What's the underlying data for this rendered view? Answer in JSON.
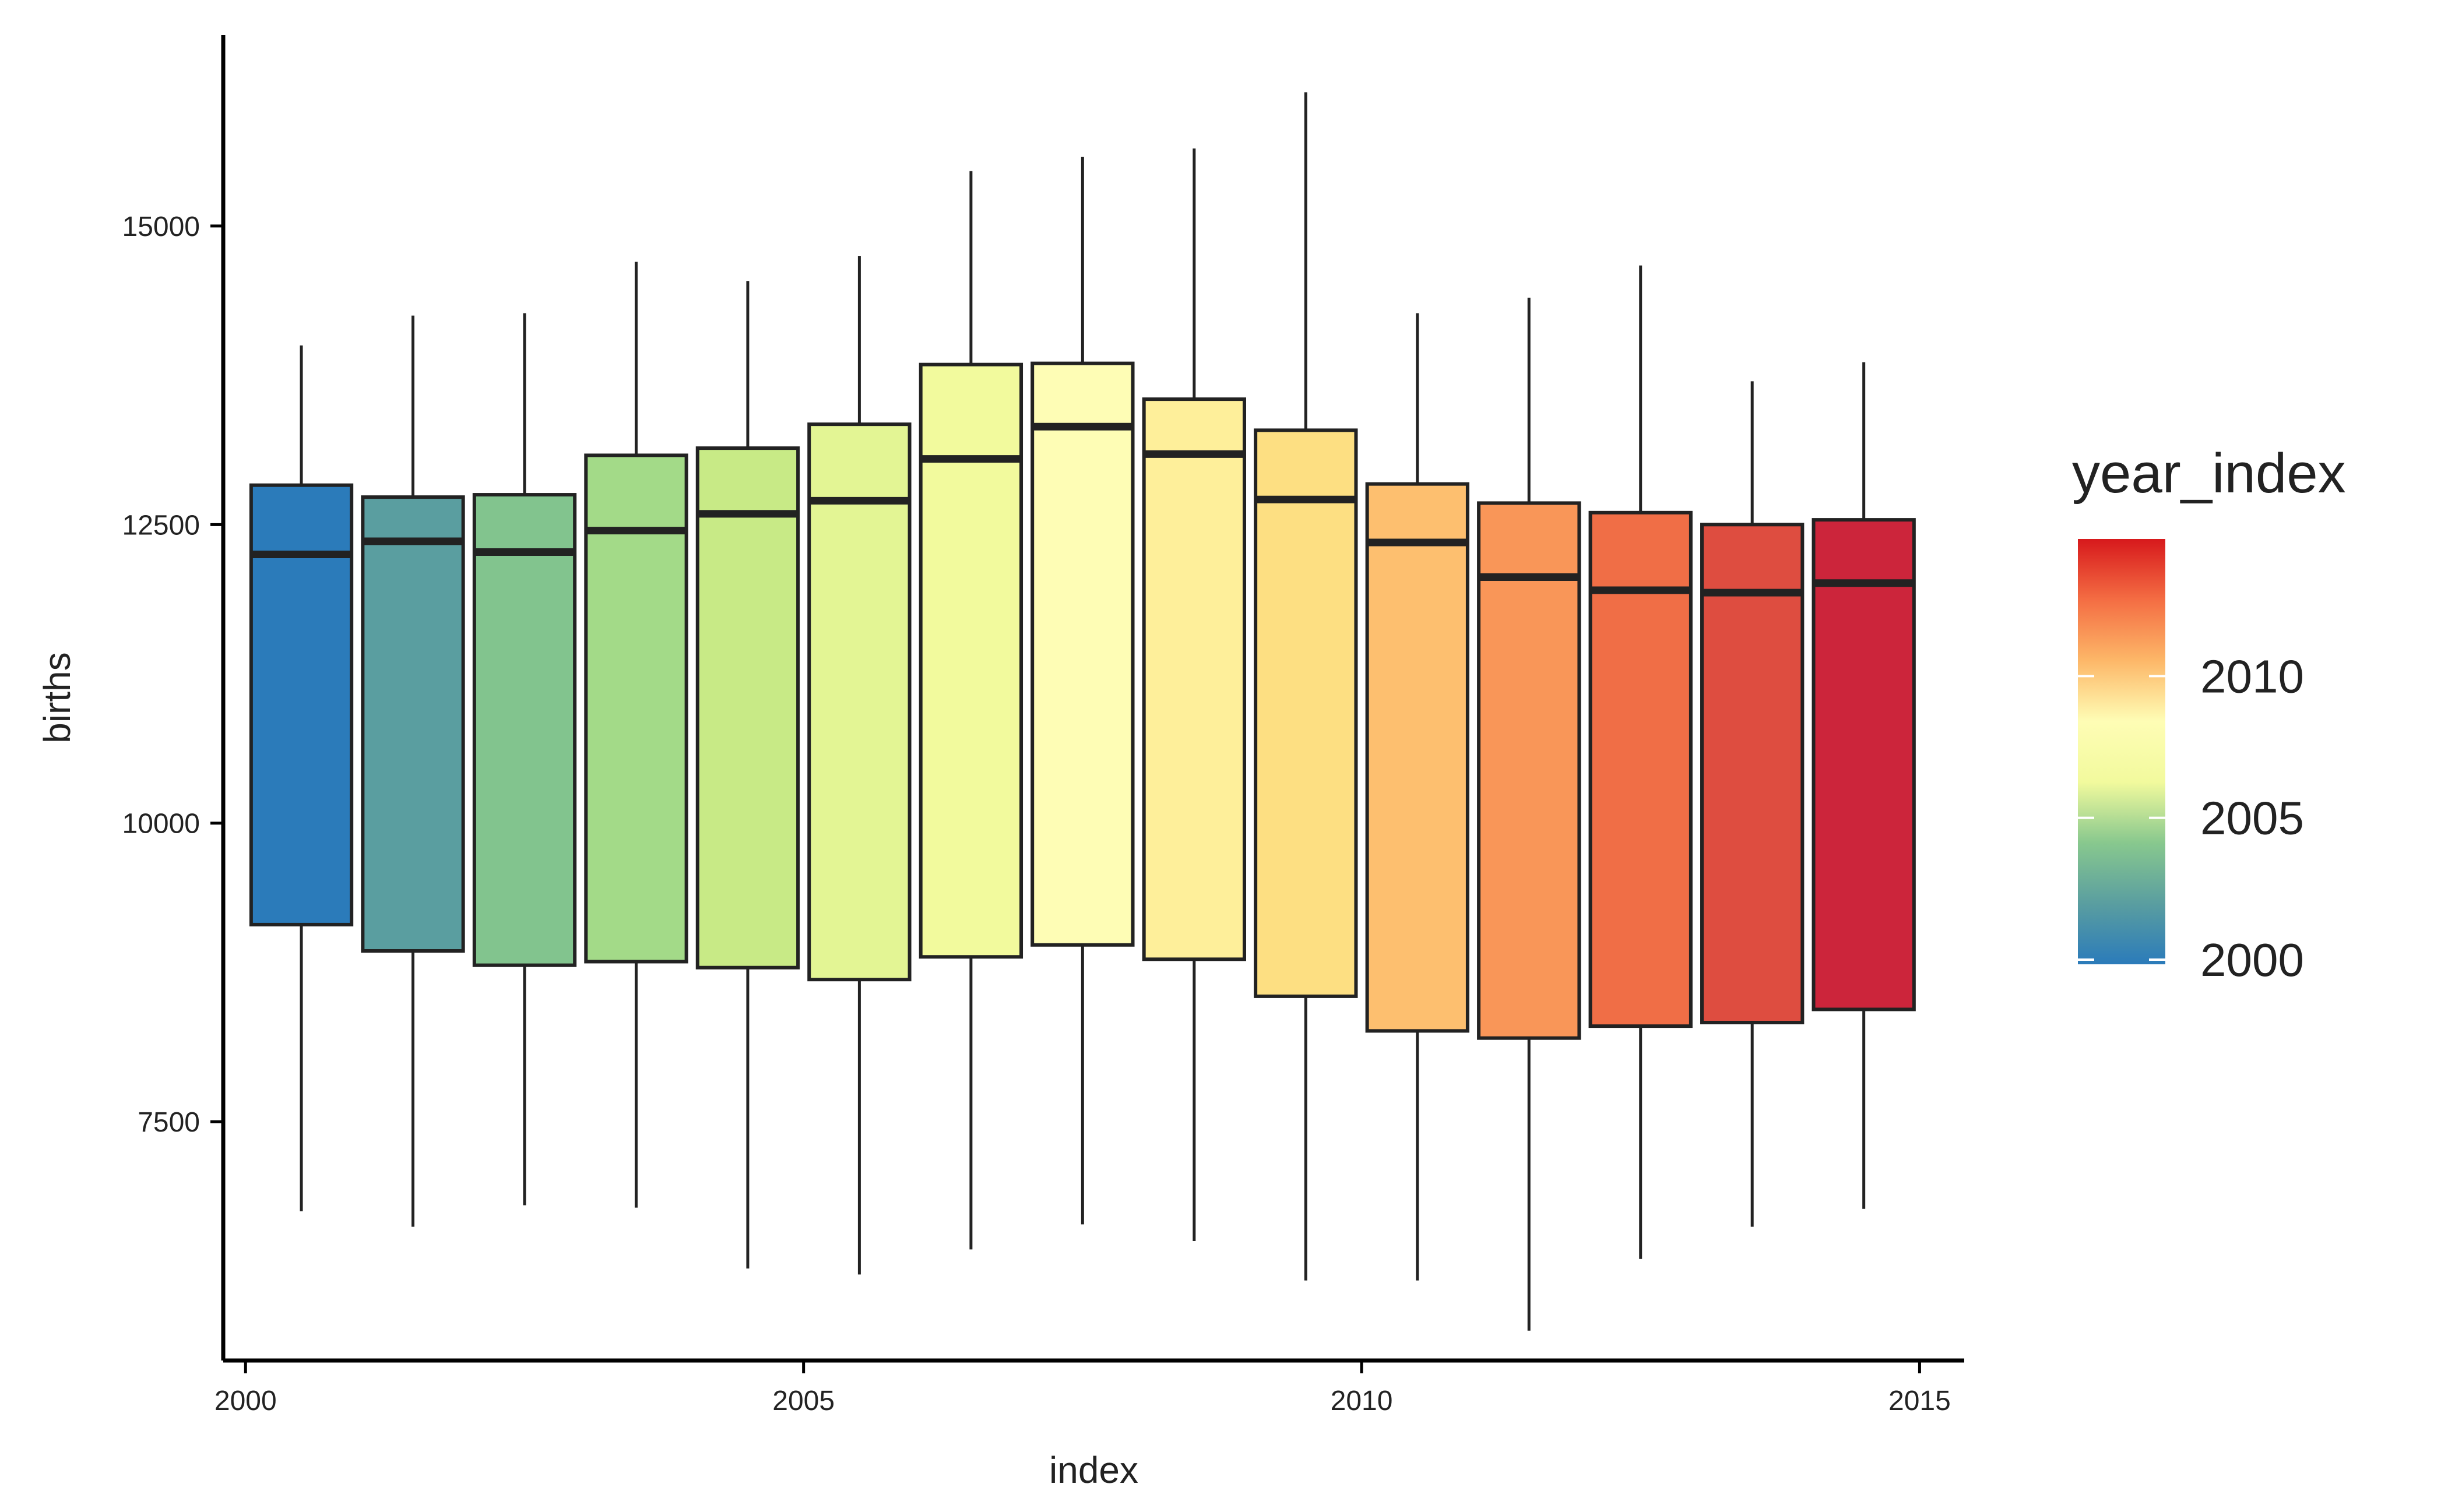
{
  "chart_data": {
    "type": "boxplot",
    "xlabel": "index",
    "ylabel": "births",
    "xlim": [
      1999.8,
      2015.4
    ],
    "ylim": [
      5500,
      16600
    ],
    "x_ticks": [
      2000,
      2005,
      2010,
      2015
    ],
    "y_ticks": [
      7500,
      10000,
      12500,
      15000
    ],
    "grid": false,
    "legend": {
      "title": "year_index",
      "position": "right",
      "range": [
        2000,
        2015
      ],
      "ticks": [
        2000,
        2005,
        2010
      ],
      "colors": [
        "#2B7BBA",
        "#5A9EA0",
        "#88C88E",
        "#F2FA9D",
        "#FEFDB5",
        "#FDB768",
        "#F46D43",
        "#D7191C"
      ]
    },
    "boxes": [
      {
        "x": 2000.5,
        "min": 6750,
        "q1": 9150,
        "median": 12250,
        "q3": 12830,
        "max": 14000,
        "color": "#2B7BBA"
      },
      {
        "x": 2001.5,
        "min": 6620,
        "q1": 8930,
        "median": 12360,
        "q3": 12730,
        "max": 14250,
        "color": "#5A9EA0"
      },
      {
        "x": 2002.5,
        "min": 6800,
        "q1": 8810,
        "median": 12270,
        "q3": 12750,
        "max": 14270,
        "color": "#82C48E"
      },
      {
        "x": 2003.5,
        "min": 6780,
        "q1": 8840,
        "median": 12450,
        "q3": 13080,
        "max": 14700,
        "color": "#A3DA88"
      },
      {
        "x": 2004.5,
        "min": 6270,
        "q1": 8790,
        "median": 12590,
        "q3": 13140,
        "max": 14540,
        "color": "#C8EA86"
      },
      {
        "x": 2005.5,
        "min": 6220,
        "q1": 8690,
        "median": 12700,
        "q3": 13340,
        "max": 14750,
        "color": "#E3F594"
      },
      {
        "x": 2006.5,
        "min": 6430,
        "q1": 8880,
        "median": 13050,
        "q3": 13840,
        "max": 15460,
        "color": "#F2FA9D"
      },
      {
        "x": 2007.5,
        "min": 6640,
        "q1": 8980,
        "median": 13320,
        "q3": 13850,
        "max": 15580,
        "color": "#FEFDB5"
      },
      {
        "x": 2008.5,
        "min": 6500,
        "q1": 8860,
        "median": 13090,
        "q3": 13550,
        "max": 15650,
        "color": "#FEEF9A"
      },
      {
        "x": 2009.5,
        "min": 6170,
        "q1": 8550,
        "median": 12710,
        "q3": 13290,
        "max": 16120,
        "color": "#FDDF82"
      },
      {
        "x": 2010.5,
        "min": 6170,
        "q1": 8260,
        "median": 12350,
        "q3": 12840,
        "max": 14270,
        "color": "#FDBF6F"
      },
      {
        "x": 2011.5,
        "min": 5750,
        "q1": 8200,
        "median": 12060,
        "q3": 12680,
        "max": 14400,
        "color": "#F99658"
      },
      {
        "x": 2012.5,
        "min": 6350,
        "q1": 8300,
        "median": 11950,
        "q3": 12600,
        "max": 14670,
        "color": "#F06E46"
      },
      {
        "x": 2013.5,
        "min": 6620,
        "q1": 8330,
        "median": 11930,
        "q3": 12500,
        "max": 13700,
        "color": "#DE4D40"
      },
      {
        "x": 2014.5,
        "min": 6770,
        "q1": 8440,
        "median": 12010,
        "q3": 12540,
        "max": 13860,
        "color": "#CC253B"
      }
    ]
  }
}
